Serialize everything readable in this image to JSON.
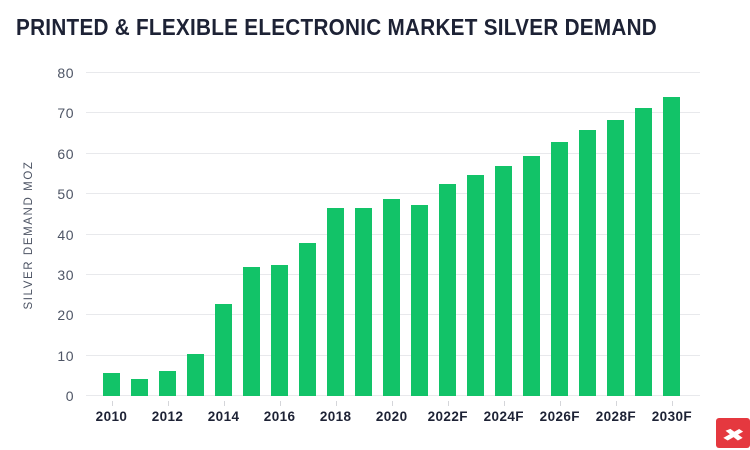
{
  "header": {
    "title": "PRINTED & FLEXIBLE ELECTRONIC MARKET SILVER DEMAND"
  },
  "chart_data": {
    "type": "bar",
    "title": "PRINTED & FLEXIBLE ELECTRONIC MARKET SILVER DEMAND",
    "xlabel": "",
    "ylabel": "SILVER DEMAND MOZ",
    "ylim": [
      0,
      80
    ],
    "yticks": [
      0,
      10,
      20,
      30,
      40,
      50,
      60,
      70,
      80
    ],
    "grid": true,
    "legend": false,
    "categories": [
      "2010",
      "2011",
      "2012",
      "2013",
      "2014",
      "2015",
      "2016",
      "2017",
      "2018",
      "2019",
      "2020",
      "2021",
      "2022F",
      "2023F",
      "2024F",
      "2025F",
      "2026F",
      "2027F",
      "2028F",
      "2029F",
      "2030F"
    ],
    "values": [
      5.7,
      4.1,
      6.2,
      10.4,
      22.7,
      32.0,
      32.5,
      37.8,
      46.5,
      46.5,
      48.8,
      47.4,
      52.6,
      54.7,
      57.0,
      59.5,
      63.0,
      65.9,
      68.4,
      71.3,
      74.0
    ],
    "x_tick_label_every": 2,
    "x_axis_visible_labels": [
      "2010",
      "2012",
      "2014",
      "2016",
      "2018",
      "2020",
      "2022F",
      "2024F",
      "2026F",
      "2028F",
      "2030F"
    ]
  },
  "branding": {
    "logo_name": "xtb-logo"
  },
  "colors": {
    "background": "#ffffff",
    "bar": "#12c368",
    "grid": "#e8e9ec",
    "axis_tick": "#d5d6da",
    "title_text": "#1d2235",
    "x_label_text": "#1d2235",
    "axis_text": "#4e5565",
    "logo_red": "#e5383f",
    "logo_glyph": "#ffffff"
  }
}
